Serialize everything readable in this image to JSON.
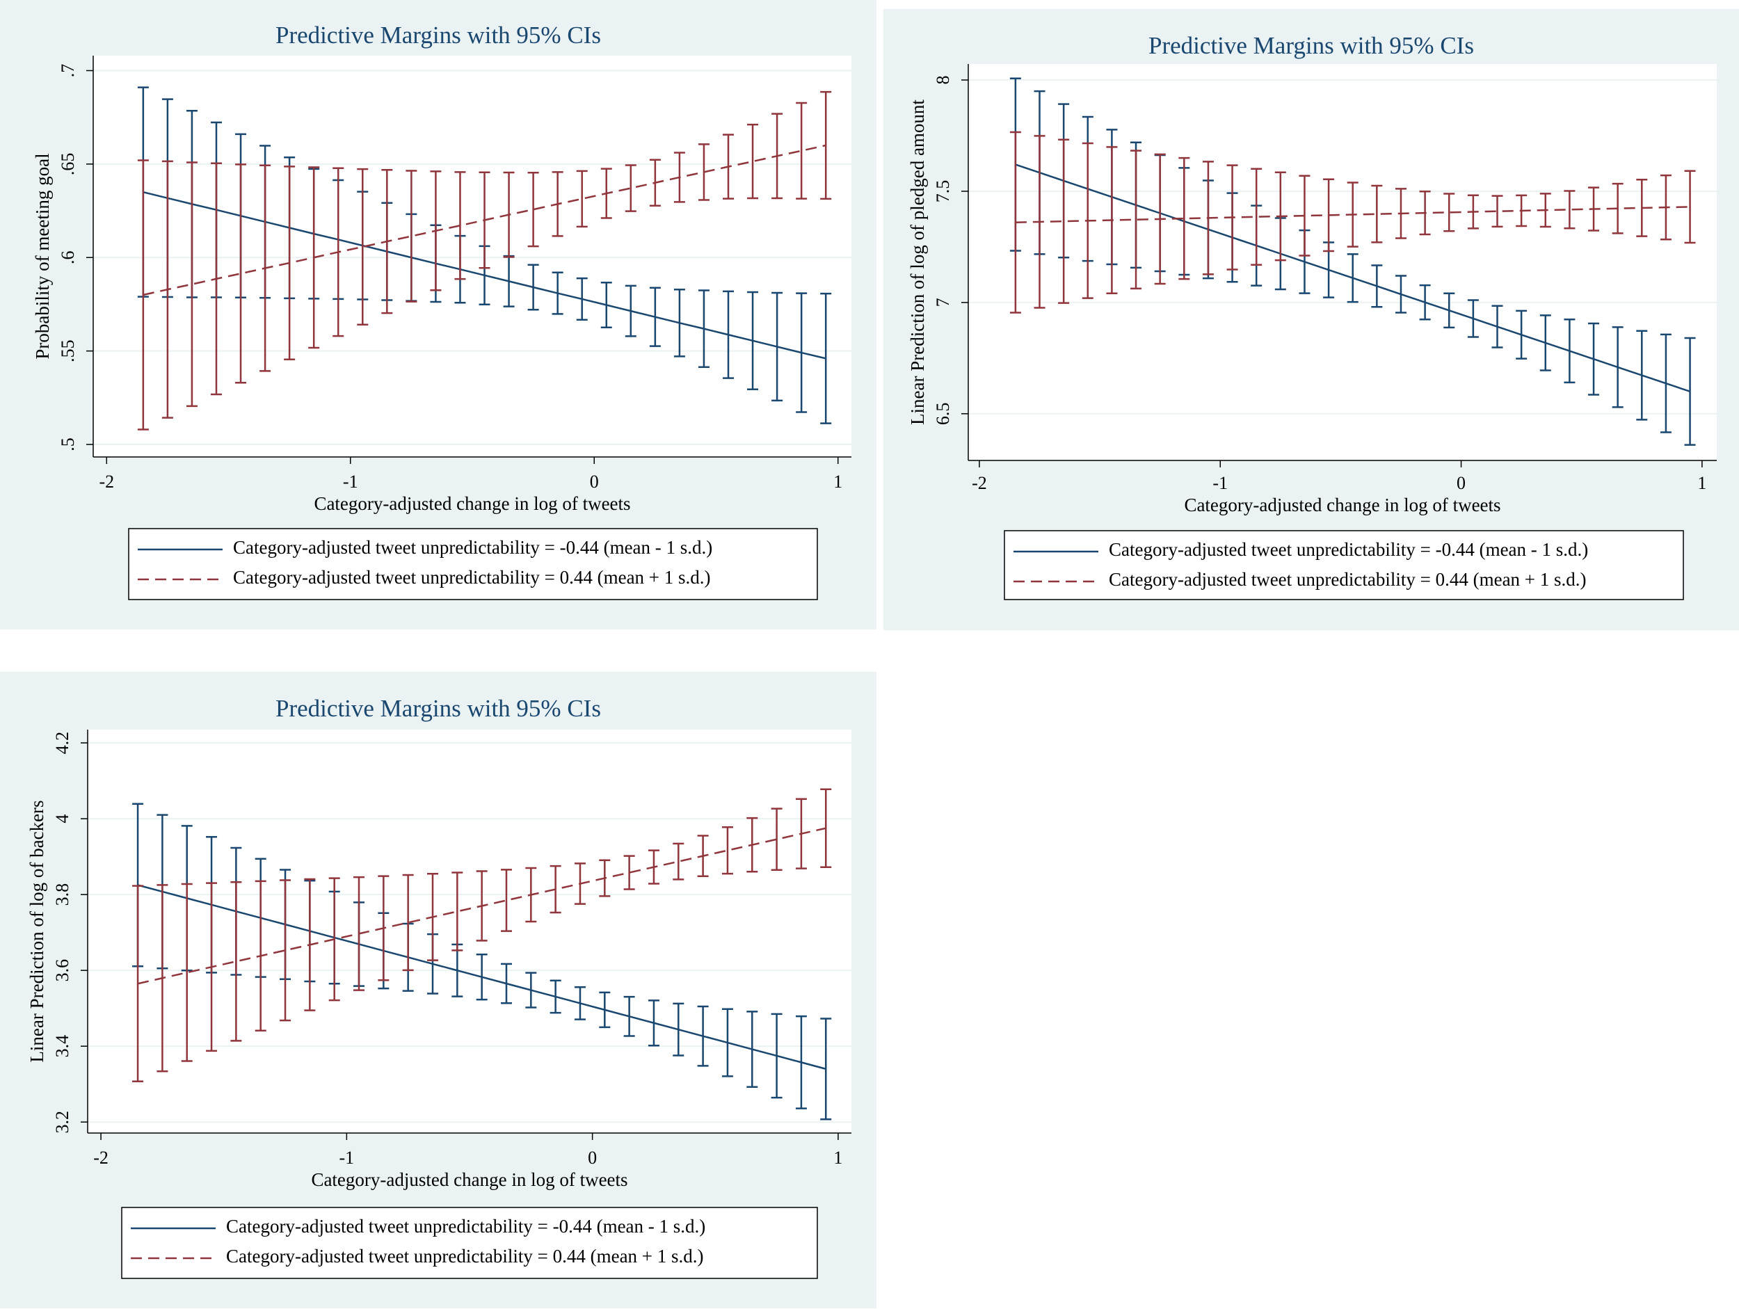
{
  "chart_data": [
    {
      "type": "line",
      "title": "Predictive Margins with 95% CIs",
      "x_label": "Category-adjusted change in log of tweets",
      "y_label": "Probability of meeting goal",
      "x": [
        -1.85,
        -1.75,
        -1.65,
        -1.55,
        -1.45,
        -1.35,
        -1.25,
        -1.15,
        -1.05,
        -0.95,
        -0.85,
        -0.75,
        -0.65,
        -0.55,
        -0.45,
        -0.35,
        -0.25,
        -0.15,
        -0.05,
        0.05,
        0.15,
        0.25,
        0.35,
        0.45,
        0.55,
        0.65,
        0.75,
        0.85,
        0.95
      ],
      "xlim": [
        -2.055,
        1.055
      ],
      "xticks": [
        -2,
        -1,
        0,
        1
      ],
      "ylim": [
        0.4933,
        0.708
      ],
      "yticks": [
        {
          "value": 0.5,
          "label": ".5"
        },
        {
          "value": 0.55,
          "label": ".55"
        },
        {
          "value": 0.6,
          "label": ".6"
        },
        {
          "value": 0.65,
          "label": ".65"
        },
        {
          "value": 0.7,
          "label": ".7"
        }
      ],
      "grid": true,
      "legend": "bottom",
      "series": [
        {
          "name": "Category-adjusted tweet unpredictability = -0.44 (mean - 1 s.d.)",
          "color": "#1a476f",
          "line_style": "solid",
          "values": [
            0.635,
            0.6318,
            0.6286,
            0.6255,
            0.6223,
            0.6191,
            0.6159,
            0.6127,
            0.6096,
            0.6064,
            0.6032,
            0.6,
            0.5968,
            0.5937,
            0.5905,
            0.5873,
            0.5841,
            0.5809,
            0.5778,
            0.5746,
            0.5714,
            0.5682,
            0.565,
            0.5619,
            0.5587,
            0.5555,
            0.5523,
            0.5491,
            0.546
          ],
          "errors": [
            0.056,
            0.0529,
            0.0499,
            0.0468,
            0.0437,
            0.0407,
            0.0377,
            0.0347,
            0.0318,
            0.0288,
            0.026,
            0.0232,
            0.0205,
            0.0179,
            0.0156,
            0.0135,
            0.012,
            0.0111,
            0.0111,
            0.012,
            0.0135,
            0.0156,
            0.0179,
            0.0205,
            0.0232,
            0.026,
            0.0288,
            0.0318,
            0.0347
          ]
        },
        {
          "name": "Category-adjusted tweet unpredictability = 0.44 (mean + 1 s.d.)",
          "color": "#90353b",
          "line_style": "dashed",
          "values": [
            0.58,
            0.5829,
            0.5857,
            0.5886,
            0.5914,
            0.5943,
            0.5971,
            0.6,
            0.6029,
            0.6057,
            0.6086,
            0.6114,
            0.6143,
            0.6171,
            0.62,
            0.6229,
            0.6257,
            0.6286,
            0.6314,
            0.6343,
            0.6371,
            0.64,
            0.6429,
            0.6457,
            0.6486,
            0.6514,
            0.6543,
            0.6571,
            0.66
          ],
          "errors": [
            0.072,
            0.0686,
            0.0652,
            0.0618,
            0.0584,
            0.055,
            0.0516,
            0.0483,
            0.0449,
            0.0416,
            0.0383,
            0.035,
            0.0318,
            0.0286,
            0.0256,
            0.0226,
            0.0197,
            0.0171,
            0.0149,
            0.0132,
            0.0123,
            0.0123,
            0.0132,
            0.0149,
            0.0171,
            0.0197,
            0.0226,
            0.0256,
            0.0286
          ]
        }
      ]
    },
    {
      "type": "line",
      "title": "Predictive Margins with 95% CIs",
      "x_label": "Category-adjusted change in log of tweets",
      "y_label": "Linear Prediction of log of pledged amount",
      "x": [
        -1.85,
        -1.75,
        -1.65,
        -1.55,
        -1.45,
        -1.35,
        -1.25,
        -1.15,
        -1.05,
        -0.95,
        -0.85,
        -0.75,
        -0.65,
        -0.55,
        -0.45,
        -0.35,
        -0.25,
        -0.15,
        -0.05,
        0.05,
        0.15,
        0.25,
        0.35,
        0.45,
        0.55,
        0.65,
        0.75,
        0.85,
        0.95
      ],
      "xlim": [
        -2.046,
        1.061
      ],
      "xticks": [
        -2,
        -1,
        0,
        1
      ],
      "ylim": [
        6.29,
        8.072
      ],
      "yticks": [
        6.5,
        7,
        7.5,
        8
      ],
      "grid": true,
      "legend": "bottom",
      "series": [
        {
          "name": "Category-adjusted tweet unpredictability = -0.44 (mean - 1 s.d.)",
          "color": "#1a476f",
          "line_style": "solid",
          "values": [
            7.62,
            7.5836,
            7.5471,
            7.5107,
            7.4743,
            7.4379,
            7.4014,
            7.365,
            7.3286,
            7.2921,
            7.2557,
            7.2193,
            7.1829,
            7.1464,
            7.11,
            7.0736,
            7.0371,
            7.0007,
            6.9643,
            6.9279,
            6.8914,
            6.855,
            6.8186,
            6.7821,
            6.7457,
            6.7093,
            6.6729,
            6.6364,
            6.6
          ],
          "errors": [
            0.3873,
            0.3661,
            0.3449,
            0.3237,
            0.3027,
            0.2817,
            0.2609,
            0.2402,
            0.2198,
            0.1995,
            0.1797,
            0.1603,
            0.1416,
            0.1238,
            0.1075,
            0.0935,
            0.0828,
            0.0769,
            0.0769,
            0.0828,
            0.0935,
            0.1075,
            0.1238,
            0.1416,
            0.1603,
            0.1797,
            0.1995,
            0.2198,
            0.2402
          ]
        },
        {
          "name": "Category-adjusted tweet unpredictability = 0.44 (mean + 1 s.d.)",
          "color": "#90353b",
          "line_style": "dashed",
          "values": [
            7.36,
            7.3625,
            7.365,
            7.3675,
            7.37,
            7.3725,
            7.375,
            7.3775,
            7.38,
            7.3825,
            7.385,
            7.3875,
            7.39,
            7.3925,
            7.395,
            7.3975,
            7.4,
            7.4025,
            7.405,
            7.4075,
            7.41,
            7.4125,
            7.415,
            7.4175,
            7.42,
            7.4225,
            7.425,
            7.4275,
            7.43
          ],
          "errors": [
            0.4056,
            0.3864,
            0.3672,
            0.348,
            0.3289,
            0.3099,
            0.2909,
            0.272,
            0.2532,
            0.2344,
            0.2159,
            0.1975,
            0.1793,
            0.1615,
            0.144,
            0.1272,
            0.1112,
            0.0966,
            0.084,
            0.0744,
            0.0691,
            0.0691,
            0.0744,
            0.084,
            0.0966,
            0.1112,
            0.1272,
            0.144,
            0.1615
          ]
        }
      ]
    },
    {
      "type": "line",
      "title": "Predictive Margins with 95% CIs",
      "x_label": "Category-adjusted change in log of tweets",
      "y_label": "Linear Prediction of log of backers",
      "x": [
        -1.85,
        -1.75,
        -1.65,
        -1.55,
        -1.45,
        -1.35,
        -1.25,
        -1.15,
        -1.05,
        -0.95,
        -0.85,
        -0.75,
        -0.65,
        -0.55,
        -0.45,
        -0.35,
        -0.25,
        -0.15,
        -0.05,
        0.05,
        0.15,
        0.25,
        0.35,
        0.45,
        0.55,
        0.65,
        0.75,
        0.85,
        0.95
      ],
      "xlim": [
        -2.054,
        1.054
      ],
      "xticks": [
        -2,
        -1,
        0,
        1
      ],
      "ylim": [
        3.171,
        4.235
      ],
      "yticks": [
        3.2,
        3.4,
        3.6,
        3.8,
        4,
        4.2
      ],
      "grid": true,
      "legend": "bottom",
      "series": [
        {
          "name": "Category-adjusted tweet unpredictability = -0.44 (mean - 1 s.d.)",
          "color": "#1a476f",
          "line_style": "solid",
          "values": [
            3.825,
            3.8077,
            3.7904,
            3.773,
            3.7557,
            3.7384,
            3.7211,
            3.7038,
            3.6864,
            3.6691,
            3.6518,
            3.6345,
            3.6172,
            3.5998,
            3.5825,
            3.5652,
            3.5479,
            3.5306,
            3.5132,
            3.4959,
            3.4786,
            3.4613,
            3.444,
            3.4266,
            3.4093,
            3.392,
            3.3747,
            3.3574,
            3.34
          ],
          "errors": [
            0.2142,
            0.2024,
            0.1907,
            0.179,
            0.1674,
            0.1558,
            0.1443,
            0.1328,
            0.1215,
            0.1103,
            0.0994,
            0.0886,
            0.0783,
            0.0685,
            0.0595,
            0.0517,
            0.0458,
            0.0425,
            0.0425,
            0.0458,
            0.0517,
            0.0595,
            0.0685,
            0.0783,
            0.0886,
            0.0994,
            0.1103,
            0.1215,
            0.1328
          ]
        },
        {
          "name": "Category-adjusted tweet unpredictability = 0.44 (mean + 1 s.d.)",
          "color": "#90353b",
          "line_style": "dashed",
          "values": [
            3.565,
            3.5796,
            3.5943,
            3.6089,
            3.6236,
            3.6382,
            3.6529,
            3.6675,
            3.6821,
            3.6968,
            3.7114,
            3.7261,
            3.7407,
            3.7554,
            3.77,
            3.7846,
            3.7993,
            3.8139,
            3.8286,
            3.8432,
            3.8579,
            3.8725,
            3.8871,
            3.9018,
            3.9164,
            3.9311,
            3.9457,
            3.9604,
            3.975
          ],
          "errors": [
            0.2579,
            0.2457,
            0.2335,
            0.2213,
            0.2092,
            0.1971,
            0.185,
            0.173,
            0.161,
            0.1491,
            0.1373,
            0.1256,
            0.114,
            0.1027,
            0.0916,
            0.0809,
            0.0707,
            0.0614,
            0.0534,
            0.0473,
            0.0439,
            0.0439,
            0.0473,
            0.0534,
            0.0614,
            0.0707,
            0.0809,
            0.0916,
            0.1027
          ]
        }
      ]
    }
  ]
}
